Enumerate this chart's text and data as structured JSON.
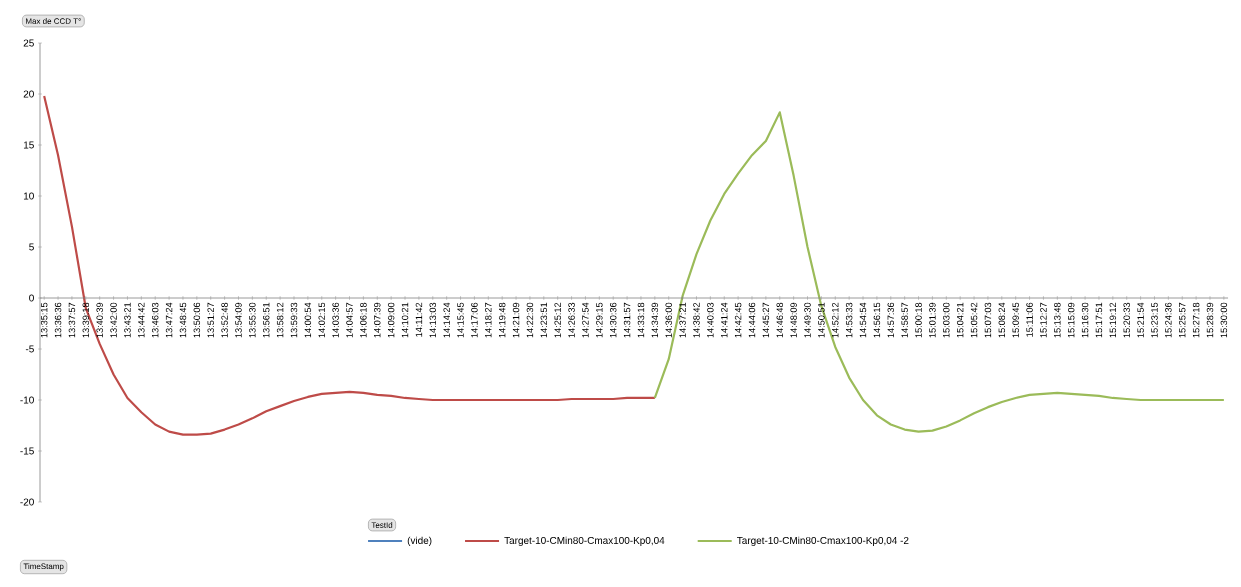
{
  "chart_data": {
    "type": "line",
    "ylabel": "Max de CCD T°",
    "annotations": [
      "TimeStamp"
    ],
    "legend_title": "TestId",
    "categories": [
      "13:35:15",
      "13:36:36",
      "13:37:57",
      "13:39:18",
      "13:40:39",
      "13:42:00",
      "13:43:21",
      "13:44:42",
      "13:46:03",
      "13:47:24",
      "13:48:45",
      "13:50:06",
      "13:51:27",
      "13:52:48",
      "13:54:09",
      "13:55:30",
      "13:56:51",
      "13:58:12",
      "13:59:33",
      "14:00:54",
      "14:02:15",
      "14:03:36",
      "14:04:57",
      "14:06:18",
      "14:07:39",
      "14:09:00",
      "14:10:21",
      "14:11:42",
      "14:13:03",
      "14:14:24",
      "14:15:45",
      "14:17:06",
      "14:18:27",
      "14:19:48",
      "14:21:09",
      "14:22:30",
      "14:23:51",
      "14:25:12",
      "14:26:33",
      "14:27:54",
      "14:29:15",
      "14:30:36",
      "14:31:57",
      "14:33:18",
      "14:34:39",
      "14:36:00",
      "14:37:21",
      "14:38:42",
      "14:40:03",
      "14:41:24",
      "14:42:45",
      "14:44:06",
      "14:45:27",
      "14:46:48",
      "14:48:09",
      "14:49:30",
      "14:50:51",
      "14:52:12",
      "14:53:33",
      "14:54:54",
      "14:56:15",
      "14:57:36",
      "14:58:57",
      "15:00:18",
      "15:01:39",
      "15:03:00",
      "15:04:21",
      "15:05:42",
      "15:07:03",
      "15:08:24",
      "15:09:45",
      "15:11:06",
      "15:12:27",
      "15:13:48",
      "15:15:09",
      "15:16:30",
      "15:17:51",
      "15:19:12",
      "15:20:33",
      "15:21:54",
      "15:23:15",
      "15:24:36",
      "15:25:57",
      "15:27:18",
      "15:28:39",
      "15:30:00"
    ],
    "series": [
      {
        "name": "(vide)",
        "color": "#4f81bd",
        "values": [
          null,
          null,
          null,
          null,
          null,
          null,
          null,
          null,
          null,
          null,
          null,
          null,
          null,
          null,
          null,
          null,
          null,
          null,
          null,
          null,
          null,
          null,
          null,
          null,
          null,
          null,
          null,
          null,
          null,
          null,
          null,
          null,
          null,
          null,
          null,
          null,
          null,
          null,
          null,
          null,
          null,
          null,
          null,
          null,
          null,
          null,
          null,
          null,
          null,
          null,
          null,
          null,
          null,
          null,
          null,
          null,
          null,
          null,
          null,
          null,
          null,
          null,
          null,
          null,
          null,
          null,
          null,
          null,
          null,
          null,
          null,
          null,
          null,
          null,
          null,
          null,
          null,
          null,
          null,
          null,
          null,
          null,
          null,
          null,
          null,
          null
        ]
      },
      {
        "name": "Target-10-CMin80-Cmax100-Kp0,04",
        "color": "#be4b48",
        "values": [
          19.8,
          14,
          7,
          -1,
          -4.5,
          -7.5,
          -9.8,
          -11.2,
          -12.4,
          -13.1,
          -13.4,
          -13.4,
          -13.3,
          -12.9,
          -12.4,
          -11.8,
          -11.1,
          -10.6,
          -10.1,
          -9.7,
          -9.4,
          -9.3,
          -9.2,
          -9.3,
          -9.5,
          -9.6,
          -9.8,
          -9.9,
          -10,
          -10,
          -10,
          -10,
          -10,
          -10,
          -10,
          -10,
          -10,
          -10,
          -9.9,
          -9.9,
          -9.9,
          -9.9,
          -9.8,
          -9.8,
          -9.8,
          null,
          null,
          null,
          null,
          null,
          null,
          null,
          null,
          null,
          null,
          null,
          null,
          null,
          null,
          null,
          null,
          null,
          null,
          null,
          null,
          null,
          null,
          null,
          null,
          null,
          null,
          null,
          null,
          null,
          null,
          null,
          null,
          null,
          null,
          null,
          null,
          null,
          null,
          null,
          null,
          null
        ]
      },
      {
        "name": "Target-10-CMin80-Cmax100-Kp0,04 -2",
        "color": "#9bbb59",
        "values": [
          null,
          null,
          null,
          null,
          null,
          null,
          null,
          null,
          null,
          null,
          null,
          null,
          null,
          null,
          null,
          null,
          null,
          null,
          null,
          null,
          null,
          null,
          null,
          null,
          null,
          null,
          null,
          null,
          null,
          null,
          null,
          null,
          null,
          null,
          null,
          null,
          null,
          null,
          null,
          null,
          null,
          null,
          null,
          null,
          -9.8,
          -6,
          0.2,
          4.3,
          7.6,
          10.2,
          12.2,
          14,
          15.4,
          18.2,
          12,
          5,
          -0.8,
          -4.8,
          -7.8,
          -10,
          -11.5,
          -12.4,
          -12.9,
          -13.1,
          -13,
          -12.6,
          -12,
          -11.3,
          -10.7,
          -10.2,
          -9.8,
          -9.5,
          -9.4,
          -9.3,
          -9.4,
          -9.5,
          -9.6,
          -9.8,
          -9.9,
          -10,
          -10,
          -10,
          -10,
          -10,
          -10,
          -10
        ]
      }
    ],
    "ylim": [
      -20,
      25
    ],
    "yticks": [
      -20,
      -15,
      -10,
      -5,
      0,
      5,
      10,
      15,
      20,
      25
    ],
    "grid": false,
    "legend": "bottom",
    "marker": "none",
    "line_style": "solid"
  }
}
